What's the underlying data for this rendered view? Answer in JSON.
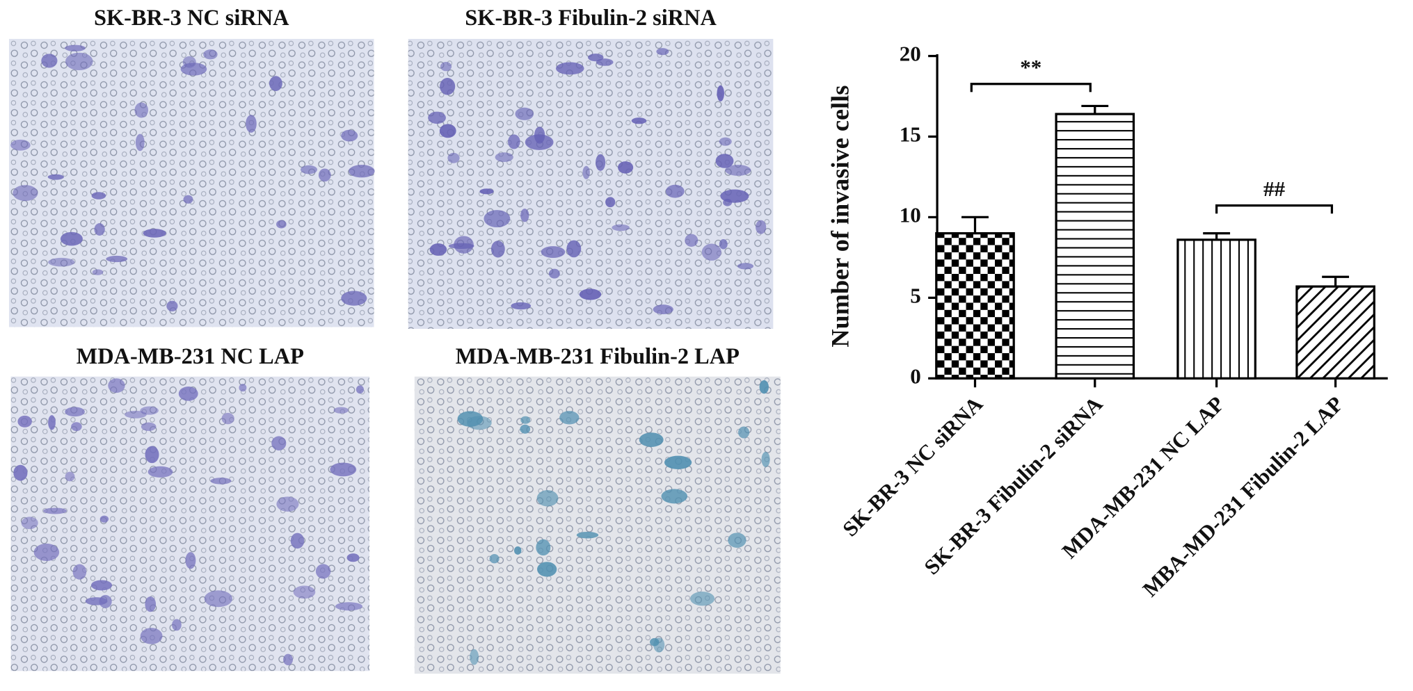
{
  "panels": [
    {
      "title": "SK-BR-3 NC siRNA"
    },
    {
      "title": "SK-BR-3 Fibulin-2 siRNA"
    },
    {
      "title": "MDA-MB-231 NC LAP"
    },
    {
      "title": "MDA-MB-231 Fibulin-2 LAP"
    }
  ],
  "chart_data": {
    "type": "bar",
    "ylabel": "Number of invasive cells",
    "categories": [
      "SK-BR-3 NC siRNA",
      "SK-BR-3 Fibulin-2 siRNA",
      "MDA-MB-231 NC LAP",
      "MBA-MD-231 Fibulin-2 LAP"
    ],
    "values": [
      9.0,
      16.4,
      8.6,
      5.7
    ],
    "errors": [
      1.0,
      0.5,
      0.4,
      0.6
    ],
    "color": "#000000",
    "ylim": [
      0,
      20
    ],
    "yticks": [
      0,
      5,
      10,
      15,
      20
    ],
    "annotations": [
      "**",
      "##"
    ]
  }
}
